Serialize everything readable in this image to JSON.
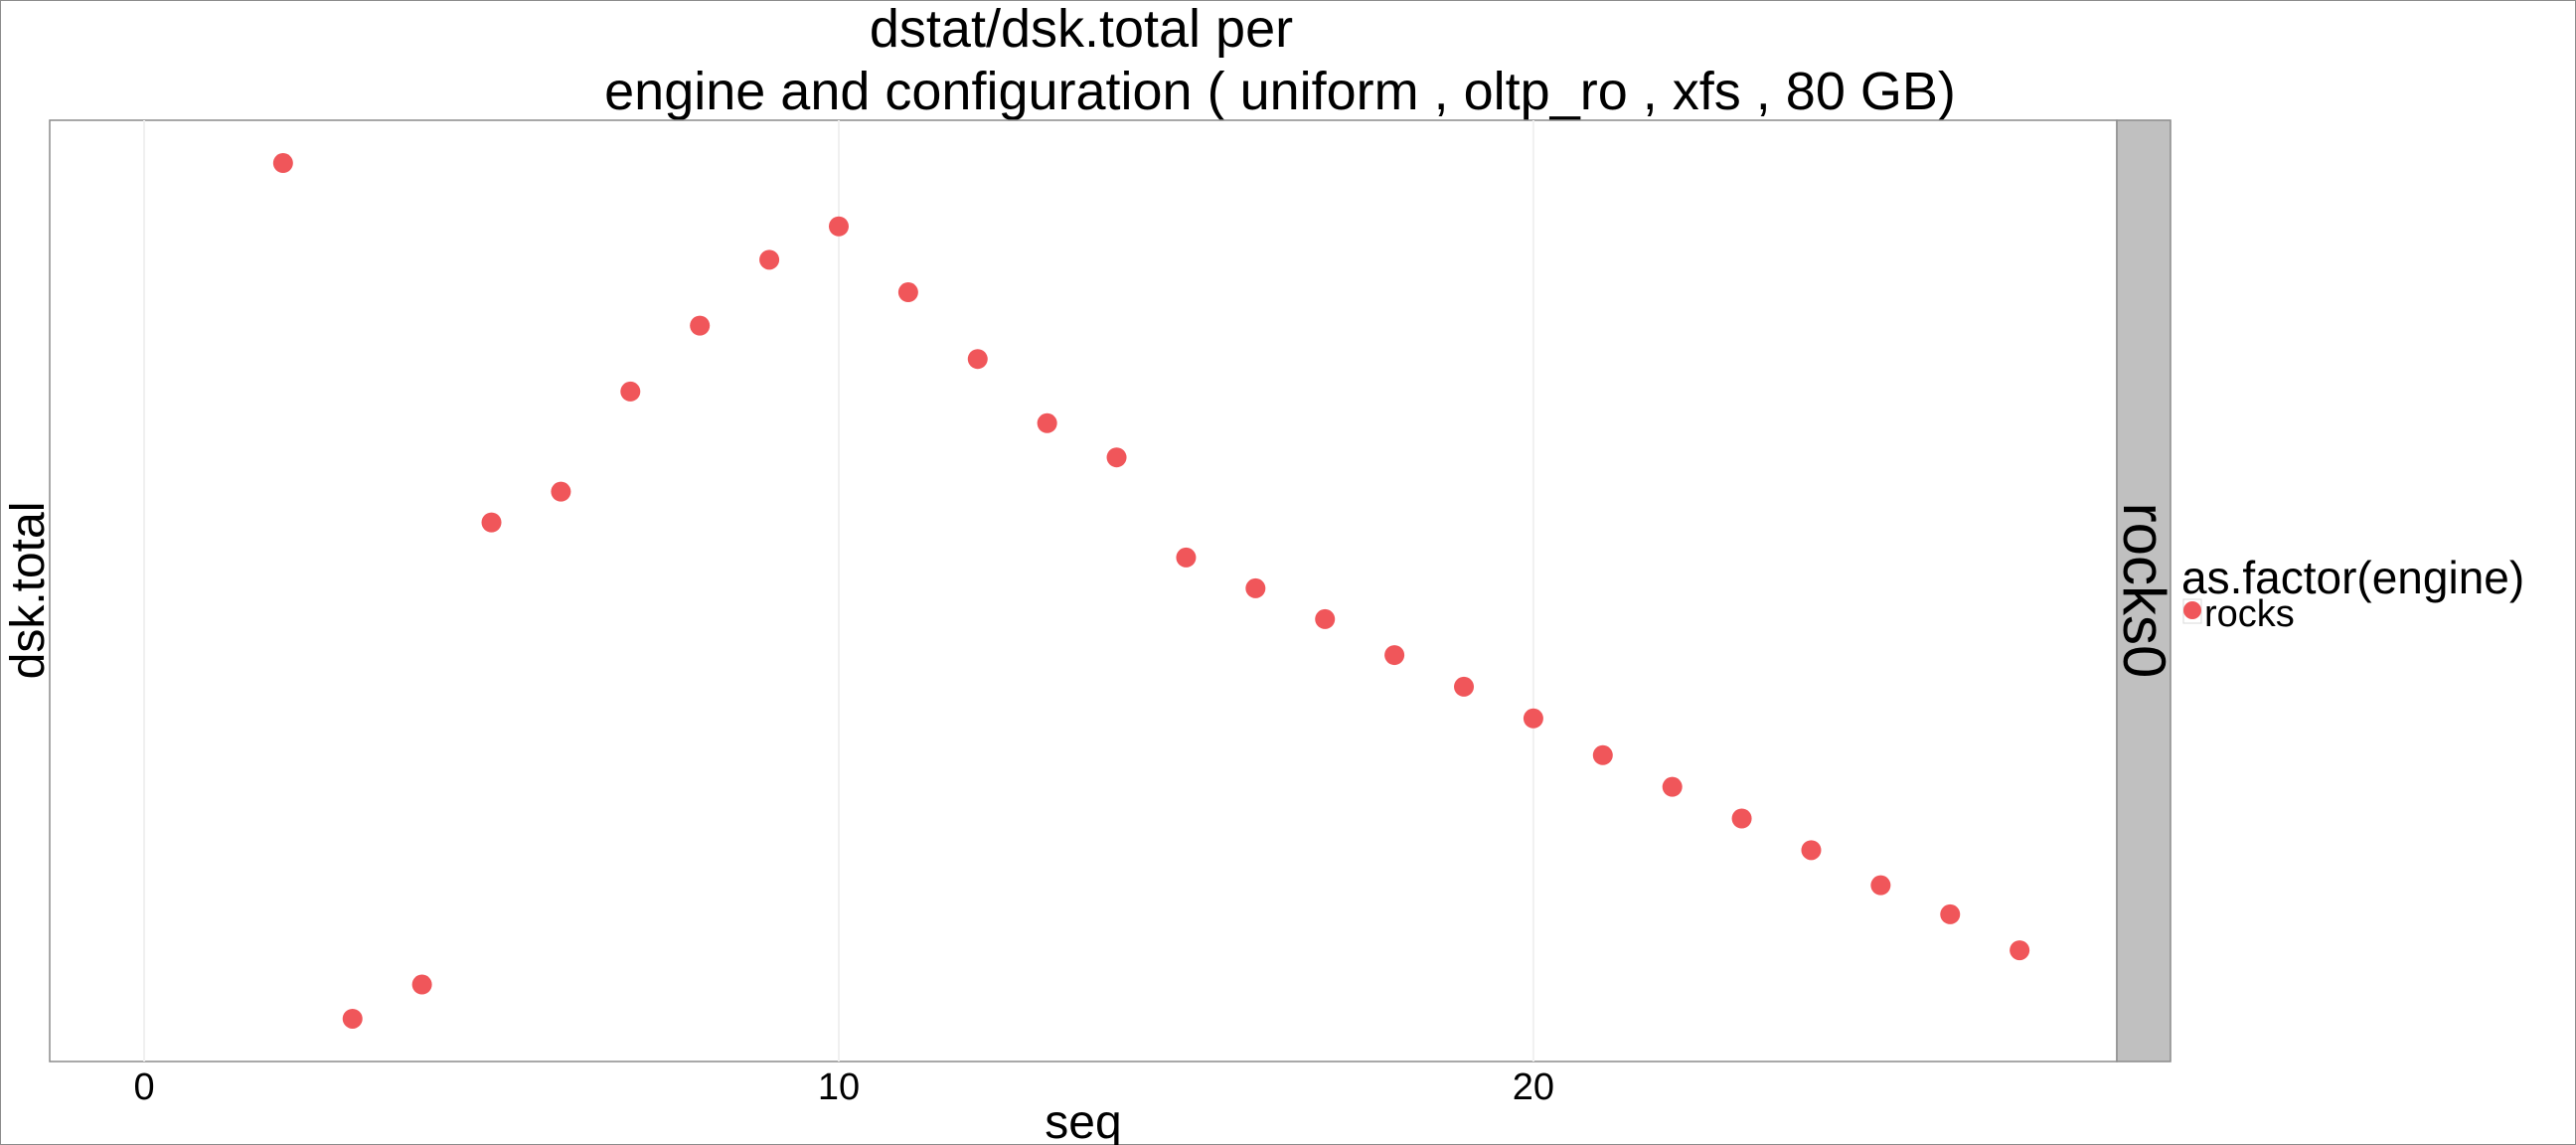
{
  "chart_data": {
    "type": "scatter",
    "title_line1": "dstat/dsk.total per",
    "title_line2": "engine and configuration ( uniform , oltp_ro , xfs ,  80 GB)",
    "xlabel": "seq",
    "ylabel": "dsk.total",
    "x_ticks": [
      0,
      10,
      20
    ],
    "x_tick_labels": [
      "0",
      "10",
      "20"
    ],
    "xlim": [
      -1.36,
      28.4
    ],
    "ylim": [
      -0.05,
      1.05
    ],
    "y_tick_labels_shown": false,
    "grid": "vertical-major-light",
    "facet_label": "rocks0",
    "legend": {
      "title": "as.factor(engine)",
      "position": "right",
      "entries": [
        {
          "label": "rocks",
          "color": "#F0565A"
        }
      ]
    },
    "series": [
      {
        "name": "rocks",
        "color": "#F0565A",
        "x": [
          2,
          3,
          4,
          5,
          6,
          7,
          8,
          9,
          10,
          11,
          12,
          13,
          14,
          15,
          16,
          17,
          18,
          19,
          20,
          21,
          22,
          23,
          24,
          25,
          26,
          27
        ],
        "y": [
          1.0,
          0.0,
          0.04,
          0.58,
          0.616,
          0.733,
          0.81,
          0.887,
          0.926,
          0.849,
          0.771,
          0.696,
          0.656,
          0.539,
          0.503,
          0.467,
          0.425,
          0.388,
          0.351,
          0.308,
          0.271,
          0.234,
          0.197,
          0.156,
          0.122,
          0.08
        ]
      }
    ]
  },
  "colors": {
    "panel_border": "#8c8c8c",
    "strip_fill": "#c0c0c0",
    "grid": "#f0f0f0",
    "point": "#F0565A"
  }
}
